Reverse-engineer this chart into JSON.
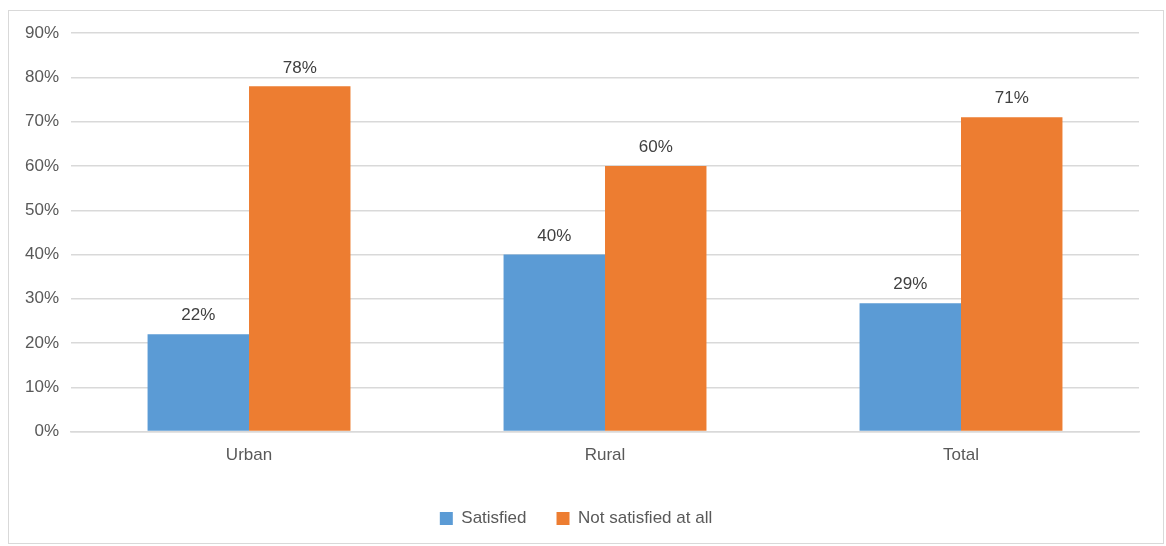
{
  "chart_data": {
    "type": "bar",
    "categories": [
      "Urban",
      "Rural",
      "Total"
    ],
    "series": [
      {
        "name": "Satisfied",
        "color": "#5b9bd5",
        "values": [
          22,
          40,
          29
        ],
        "value_labels": [
          "22%",
          "40%",
          "29%"
        ]
      },
      {
        "name": "Not satisfied at all",
        "color": "#ed7d31",
        "values": [
          78,
          60,
          71
        ],
        "value_labels": [
          "78%",
          "60%",
          "71%"
        ]
      }
    ],
    "ylim": [
      0,
      90
    ],
    "yticks": [
      {
        "value": 0,
        "label": "0%"
      },
      {
        "value": 10,
        "label": "10%"
      },
      {
        "value": 20,
        "label": "20%"
      },
      {
        "value": 30,
        "label": "30%"
      },
      {
        "value": 40,
        "label": "40%"
      },
      {
        "value": 50,
        "label": "50%"
      },
      {
        "value": 60,
        "label": "60%"
      },
      {
        "value": 70,
        "label": "70%"
      },
      {
        "value": 80,
        "label": "80%"
      },
      {
        "value": 90,
        "label": "90%"
      }
    ],
    "grid": "y",
    "legend": "bottom"
  }
}
